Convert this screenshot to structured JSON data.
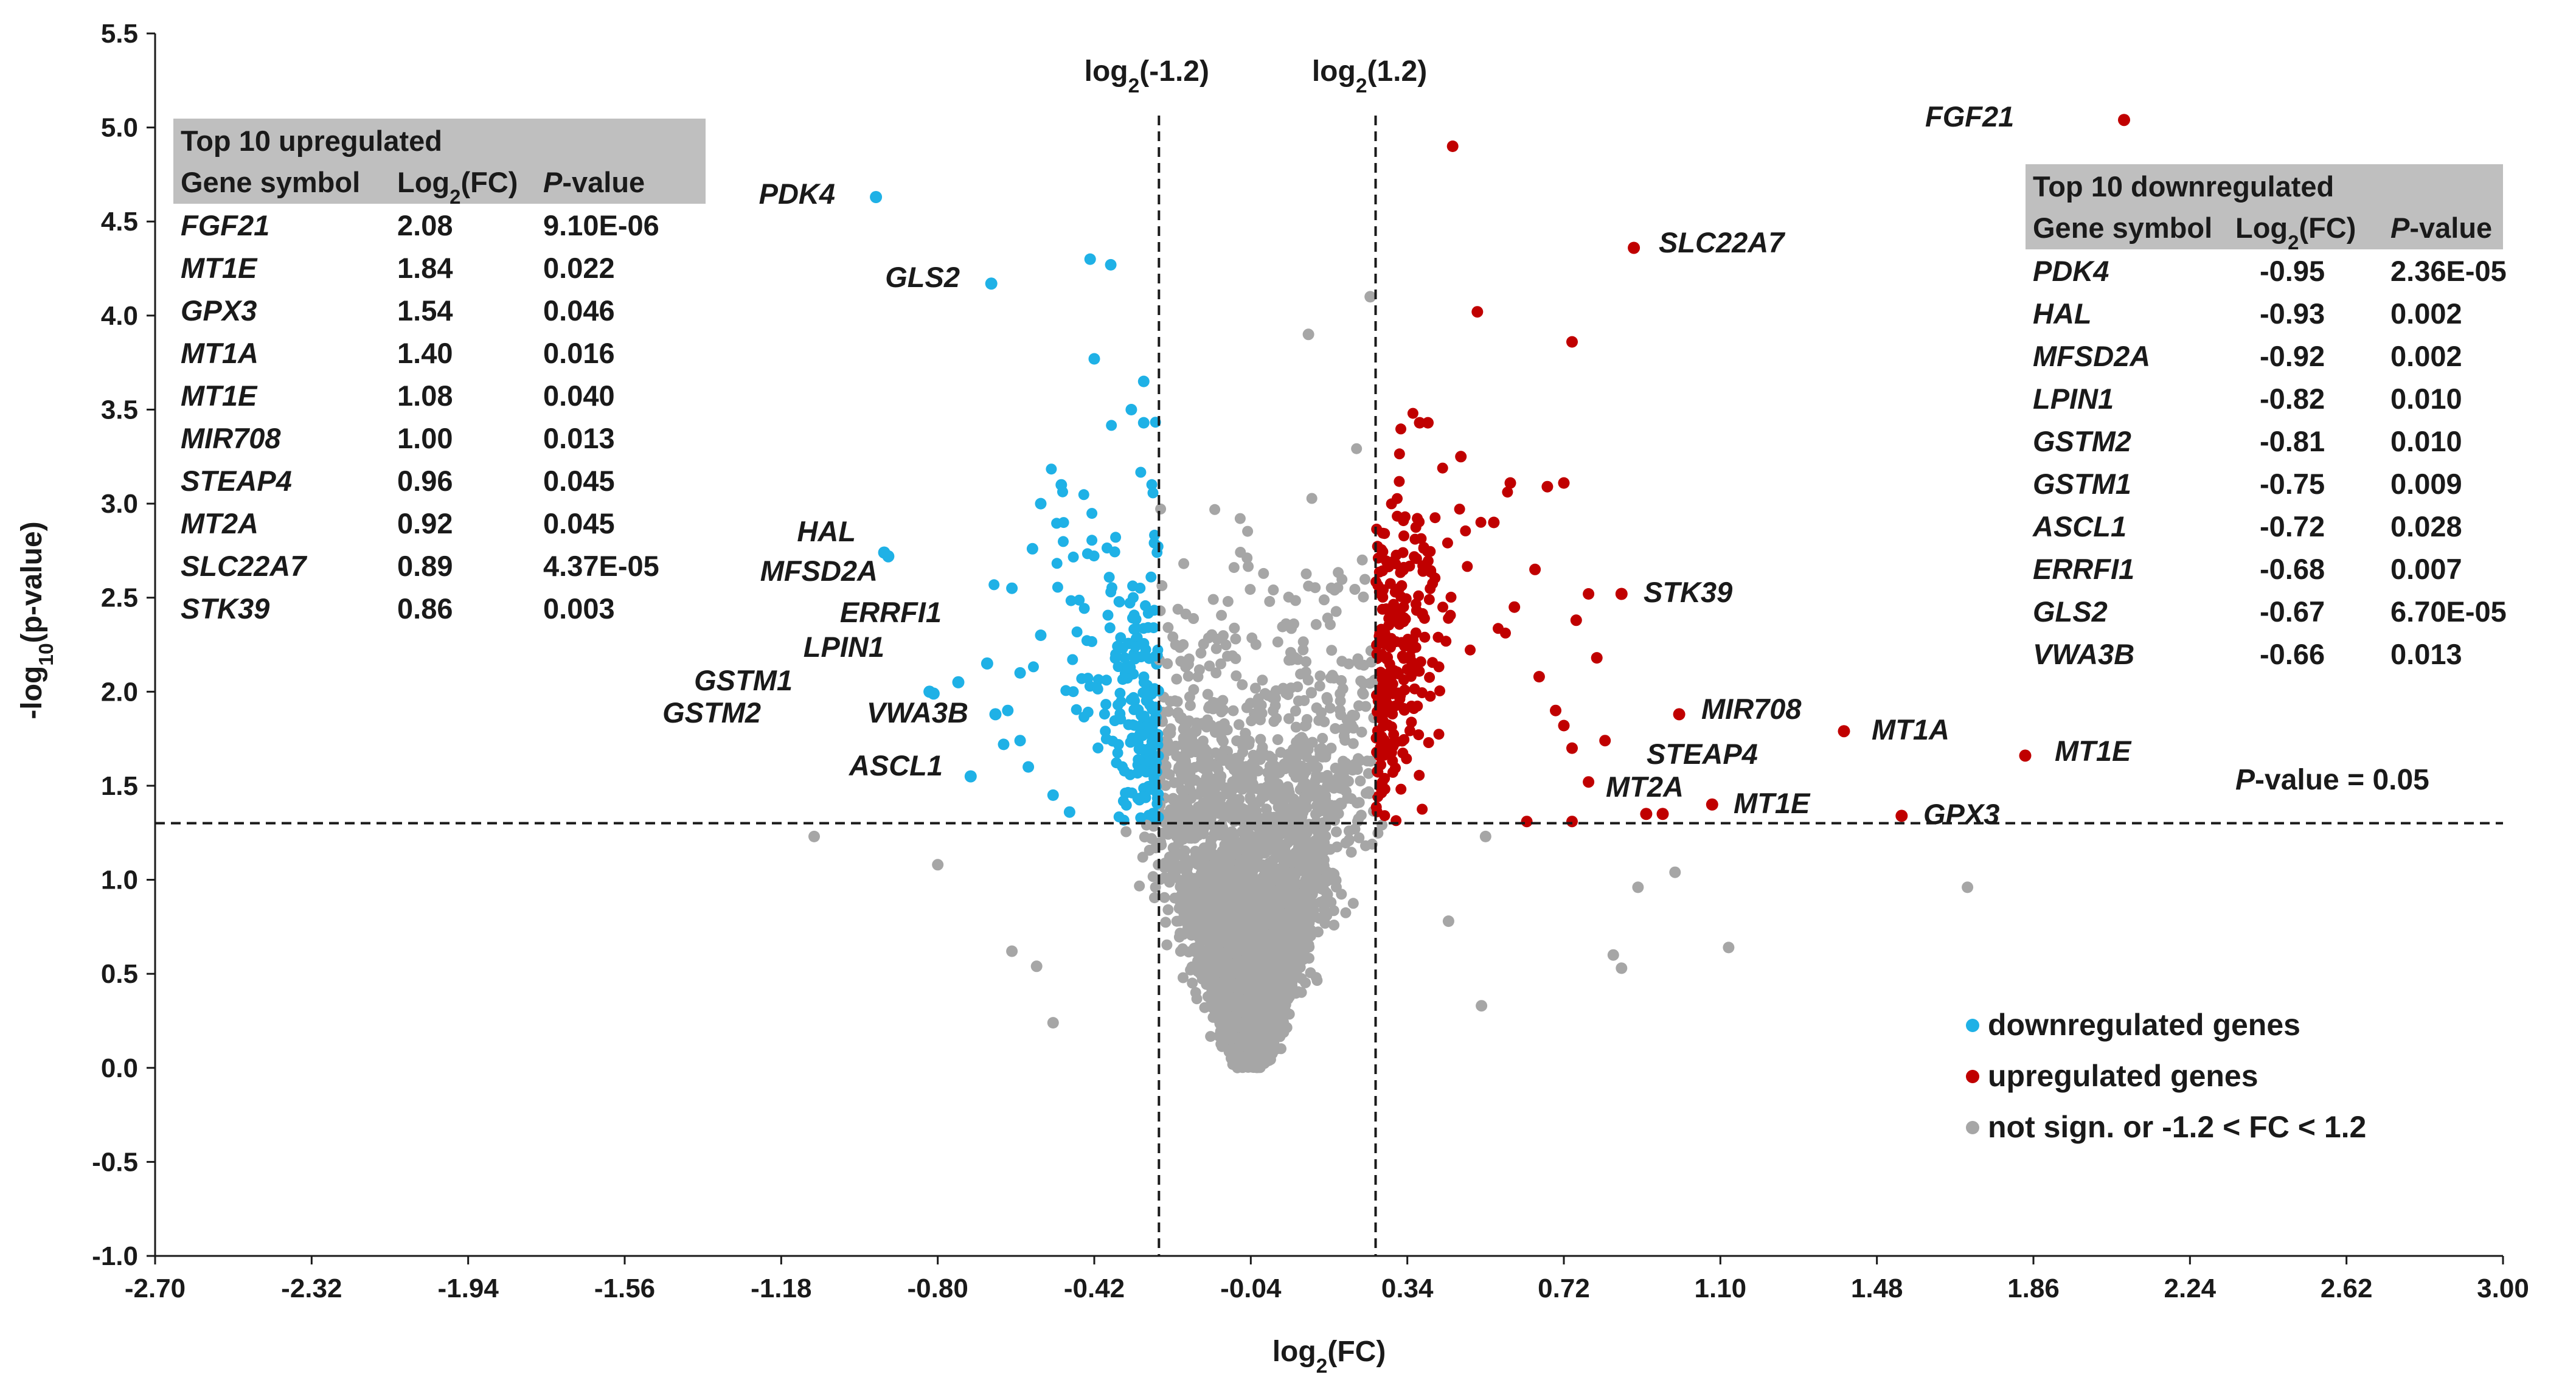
{
  "chart_data": {
    "type": "scatter",
    "title": "",
    "xlabel_main": "log",
    "xlabel_sub": "2",
    "xlabel_tail": "(FC)",
    "ylabel_pre": "-log",
    "ylabel_sub": "10",
    "ylabel_tail": "(p-value)",
    "xlim": [
      -2.7,
      3.0
    ],
    "ylim": [
      -1.0,
      5.5
    ],
    "x_ticks": [
      "-2.70",
      "-2.32",
      "-1.94",
      "-1.56",
      "-1.18",
      "-0.80",
      "-0.42",
      "-0.04",
      "0.34",
      "0.72",
      "1.10",
      "1.48",
      "1.86",
      "2.24",
      "2.62",
      "3.00"
    ],
    "y_ticks": [
      "-1.0",
      "-0.5",
      "0.0",
      "0.5",
      "1.0",
      "1.5",
      "2.0",
      "2.5",
      "3.0",
      "3.5",
      "4.0",
      "4.5",
      "5.0",
      "5.5"
    ],
    "thresholds": {
      "x_low": -0.263,
      "x_high": 0.263,
      "y": 1.301,
      "x_low_label_pre": "log",
      "x_low_label_sub": "2",
      "x_low_label_tail": "(-1.2)",
      "x_high_label_pre": "log",
      "x_high_label_sub": "2",
      "x_high_label_tail": "(1.2)",
      "y_label_italic": "P",
      "y_label_rest": "-value = 0.05"
    },
    "colors": {
      "down": "#1fb1e6",
      "up": "#c00000",
      "ns": "#a6a6a6",
      "header": "#bfbfbf"
    },
    "legend": [
      {
        "key": "down",
        "label": "downregulated genes"
      },
      {
        "key": "up",
        "label": "upregulated genes"
      },
      {
        "key": "ns",
        "label": "not sign. or -1.2 < FC < 1.2"
      }
    ],
    "labeled_points": [
      {
        "gene": "FGF21",
        "x": 2.08,
        "y": 5.04,
        "group": "up"
      },
      {
        "gene": "SLC22A7",
        "x": 0.89,
        "y": 4.36,
        "group": "up"
      },
      {
        "gene": "STK39",
        "x": 0.86,
        "y": 2.52,
        "group": "up"
      },
      {
        "gene": "MIR708",
        "x": 1.0,
        "y": 1.88,
        "group": "up"
      },
      {
        "gene": "MT1A",
        "x": 1.4,
        "y": 1.79,
        "group": "up"
      },
      {
        "gene": "MT1E",
        "x": 1.84,
        "y": 1.66,
        "group": "up"
      },
      {
        "gene": "STEAP4",
        "x": 0.96,
        "y": 1.35,
        "group": "up"
      },
      {
        "gene": "MT2A",
        "x": 0.92,
        "y": 1.35,
        "group": "up"
      },
      {
        "gene": "MT1E",
        "x": 1.08,
        "y": 1.4,
        "group": "up"
      },
      {
        "gene": "GPX3",
        "x": 1.54,
        "y": 1.34,
        "group": "up"
      },
      {
        "gene": "PDK4",
        "x": -0.95,
        "y": 4.63,
        "group": "down"
      },
      {
        "gene": "GLS2",
        "x": -0.67,
        "y": 4.17,
        "group": "down"
      },
      {
        "gene": "HAL",
        "x": -0.93,
        "y": 2.74,
        "group": "down"
      },
      {
        "gene": "MFSD2A",
        "x": -0.92,
        "y": 2.72,
        "group": "down"
      },
      {
        "gene": "ERRFI1",
        "x": -0.68,
        "y": 2.15,
        "group": "down"
      },
      {
        "gene": "LPIN1",
        "x": -0.82,
        "y": 2.0,
        "group": "down"
      },
      {
        "gene": "GSTM1",
        "x": -0.75,
        "y": 2.05,
        "group": "down"
      },
      {
        "gene": "GSTM2",
        "x": -0.81,
        "y": 1.99,
        "group": "down"
      },
      {
        "gene": "VWA3B",
        "x": -0.66,
        "y": 1.88,
        "group": "down"
      },
      {
        "gene": "ASCL1",
        "x": -0.72,
        "y": 1.55,
        "group": "down"
      }
    ],
    "extra_points": {
      "up": [
        [
          0.45,
          4.9
        ],
        [
          0.51,
          4.02
        ],
        [
          0.74,
          3.86
        ],
        [
          0.39,
          3.43
        ],
        [
          0.37,
          3.43
        ],
        [
          0.47,
          3.25
        ],
        [
          0.59,
          3.11
        ],
        [
          0.68,
          3.09
        ],
        [
          0.72,
          3.11
        ],
        [
          0.65,
          2.65
        ],
        [
          0.78,
          2.52
        ],
        [
          0.8,
          2.18
        ],
        [
          0.75,
          2.38
        ],
        [
          0.66,
          2.08
        ],
        [
          0.72,
          1.82
        ],
        [
          0.74,
          1.7
        ],
        [
          0.78,
          1.52
        ],
        [
          0.63,
          1.31
        ],
        [
          0.74,
          1.31
        ],
        [
          0.55,
          2.9
        ],
        [
          0.6,
          2.45
        ],
        [
          0.82,
          1.74
        ],
        [
          0.7,
          1.9
        ]
      ],
      "down": [
        [
          -0.43,
          4.3
        ],
        [
          -0.38,
          4.27
        ],
        [
          -0.42,
          3.77
        ],
        [
          -0.3,
          3.65
        ],
        [
          -0.33,
          3.5
        ],
        [
          -0.3,
          3.43
        ],
        [
          -0.55,
          3.0
        ],
        [
          -0.5,
          3.1
        ],
        [
          -0.62,
          2.55
        ],
        [
          -0.57,
          2.76
        ],
        [
          -0.55,
          2.3
        ],
        [
          -0.6,
          2.1
        ],
        [
          -0.63,
          1.9
        ],
        [
          -0.6,
          1.74
        ],
        [
          -0.58,
          1.6
        ],
        [
          -0.52,
          1.45
        ],
        [
          -0.48,
          1.36
        ],
        [
          -0.64,
          1.72
        ]
      ],
      "ns": [
        [
          -1.1,
          1.23
        ],
        [
          -0.8,
          1.08
        ],
        [
          -0.52,
          0.24
        ],
        [
          -0.56,
          0.54
        ],
        [
          -0.62,
          0.62
        ],
        [
          0.9,
          0.96
        ],
        [
          0.99,
          1.04
        ],
        [
          1.12,
          0.64
        ],
        [
          1.7,
          0.96
        ],
        [
          0.84,
          0.6
        ],
        [
          0.86,
          0.53
        ],
        [
          0.52,
          0.33
        ],
        [
          0.1,
          3.9
        ],
        [
          0.25,
          4.1
        ],
        [
          0.53,
          1.23
        ],
        [
          0.44,
          0.78
        ]
      ]
    },
    "cloud": {
      "seed": 4242,
      "ns_count": 3600,
      "up_count": 260,
      "down_count": 230
    }
  },
  "top_up": {
    "title": "Top 10 upregulated",
    "col_gene": "Gene symbol",
    "col_fc_pre": "Log",
    "col_fc_sub": "2",
    "col_fc_tail": "(FC)",
    "col_p_italic": "P",
    "col_p_rest": "-value",
    "rows": [
      {
        "gene": "FGF21",
        "fc": "2.08",
        "p": "9.10E-06"
      },
      {
        "gene": "MT1E",
        "fc": "1.84",
        "p": "0.022"
      },
      {
        "gene": "GPX3",
        "fc": "1.54",
        "p": "0.046"
      },
      {
        "gene": "MT1A",
        "fc": "1.40",
        "p": "0.016"
      },
      {
        "gene": "MT1E",
        "fc": "1.08",
        "p": "0.040"
      },
      {
        "gene": "MIR708",
        "fc": "1.00",
        "p": "0.013"
      },
      {
        "gene": "STEAP4",
        "fc": "0.96",
        "p": "0.045"
      },
      {
        "gene": "MT2A",
        "fc": "0.92",
        "p": "0.045"
      },
      {
        "gene": "SLC22A7",
        "fc": "0.89",
        "p": "4.37E-05"
      },
      {
        "gene": "STK39",
        "fc": "0.86",
        "p": "0.003"
      }
    ]
  },
  "top_down": {
    "title": "Top 10 downregulated",
    "col_gene": "Gene symbol",
    "col_fc_pre": "Log",
    "col_fc_sub": "2",
    "col_fc_tail": "(FC)",
    "col_p_italic": "P",
    "col_p_rest": "-value",
    "rows": [
      {
        "gene": "PDK4",
        "fc": "-0.95",
        "p": "2.36E-05"
      },
      {
        "gene": "HAL",
        "fc": "-0.93",
        "p": "0.002"
      },
      {
        "gene": "MFSD2A",
        "fc": "-0.92",
        "p": "0.002"
      },
      {
        "gene": "LPIN1",
        "fc": "-0.82",
        "p": "0.010"
      },
      {
        "gene": "GSTM2",
        "fc": "-0.81",
        "p": "0.010"
      },
      {
        "gene": "GSTM1",
        "fc": "-0.75",
        "p": "0.009"
      },
      {
        "gene": "ASCL1",
        "fc": "-0.72",
        "p": "0.028"
      },
      {
        "gene": "ERRFI1",
        "fc": "-0.68",
        "p": "0.007"
      },
      {
        "gene": "GLS2",
        "fc": "-0.67",
        "p": "6.70E-05"
      },
      {
        "gene": "VWA3B",
        "fc": "-0.66",
        "p": "0.013"
      }
    ]
  }
}
